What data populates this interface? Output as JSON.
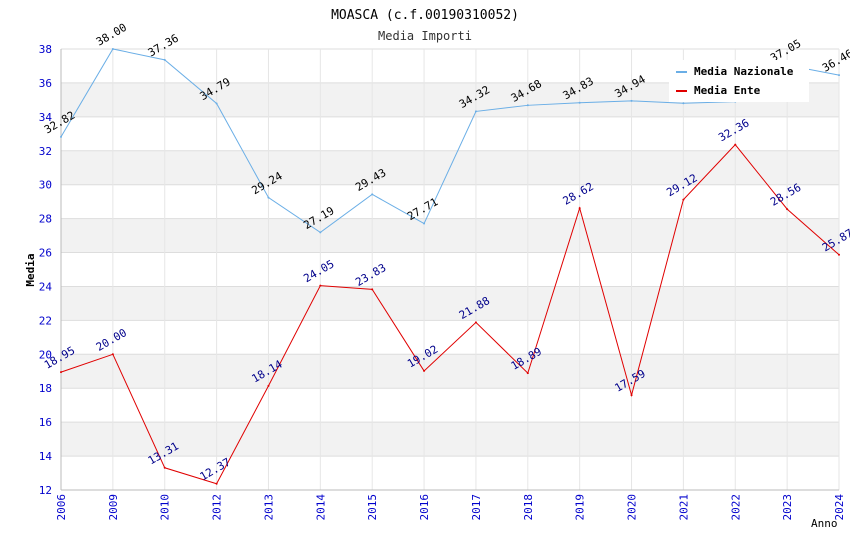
{
  "chart_data": {
    "type": "line",
    "title": "MOASCA (c.f.00190310052)",
    "subtitle": "Media Importi",
    "xlabel": "Anno",
    "ylabel": "Media",
    "categories": [
      "2006",
      "2009",
      "2010",
      "2012",
      "2013",
      "2014",
      "2015",
      "2016",
      "2017",
      "2018",
      "2019",
      "2020",
      "2021",
      "2022",
      "2023",
      "2024"
    ],
    "ylim": [
      12,
      38
    ],
    "yticks": [
      12,
      14,
      16,
      18,
      20,
      22,
      24,
      26,
      28,
      30,
      32,
      34,
      36,
      38
    ],
    "grid": true,
    "legend_position": "top-right",
    "series": [
      {
        "name": "Media Nazionale",
        "color": "#6aaee6",
        "label_color": "#000000",
        "values": [
          32.82,
          38.0,
          37.36,
          34.79,
          29.24,
          27.19,
          29.43,
          27.71,
          34.32,
          34.68,
          34.83,
          34.94,
          34.8,
          34.9,
          37.05,
          36.46
        ],
        "labels": [
          "32.82",
          "38.00",
          "37.36",
          "34.79",
          "29.24",
          "27.19",
          "29.43",
          "27.71",
          "34.32",
          "34.68",
          "34.83",
          "34.94",
          "",
          "",
          "37.05",
          "36.46"
        ]
      },
      {
        "name": "Media Ente",
        "color": "#e00000",
        "label_color": "#00008b",
        "values": [
          18.95,
          20.0,
          13.31,
          12.37,
          18.14,
          24.05,
          23.83,
          19.02,
          21.88,
          18.89,
          28.62,
          17.59,
          29.12,
          32.36,
          28.56,
          25.87
        ],
        "labels": [
          "18.95",
          "20.00",
          "13.31",
          "12.37",
          "18.14",
          "24.05",
          "23.83",
          "19.02",
          "21.88",
          "18.89",
          "28.62",
          "17.59",
          "29.12",
          "32.36",
          "28.56",
          "25.87"
        ]
      }
    ]
  }
}
